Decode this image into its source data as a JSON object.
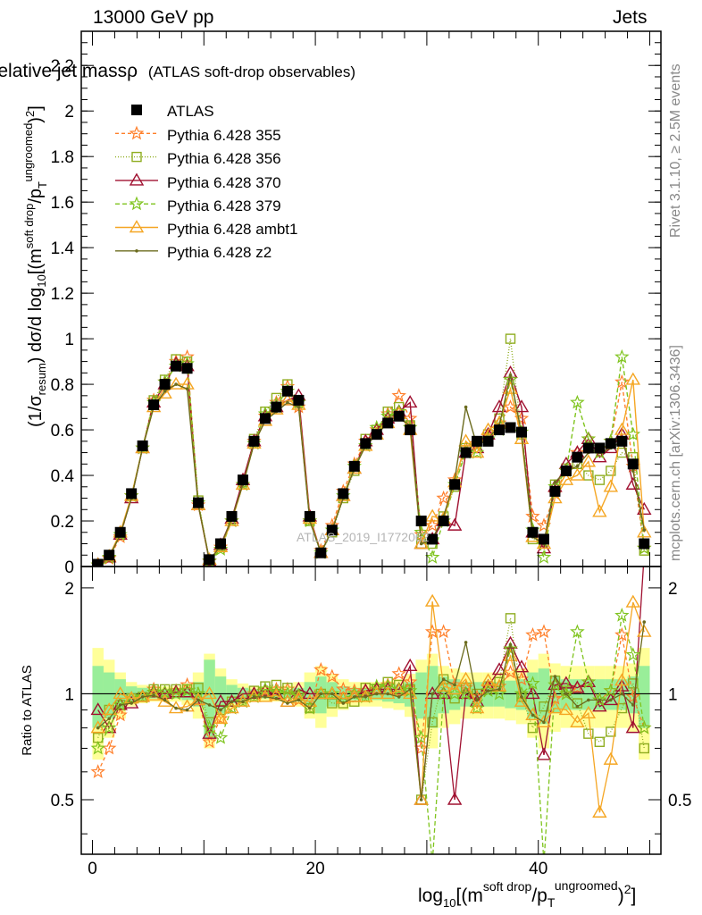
{
  "header": {
    "left": "13000 GeV pp",
    "right": "Jets",
    "side_top": "Rivet 3.1.10, ≥ 2.5M events",
    "side_bottom": "mcplots.cern.ch [arXiv:1306.3436]",
    "watermark": "ATLAS_2019_I1772062"
  },
  "chart_data": [
    {
      "type": "line",
      "title": "Relative jet massρ",
      "subtitle": "(ATLAS soft-drop observables)",
      "ylabel": "(1/σresum) dσ/d log10[(m^soft drop/pT^ungroomed)^2]",
      "ylim": [
        0,
        2.35
      ],
      "xlim": [
        -1,
        51
      ],
      "yticks": [
        "0",
        "0.2",
        "0.4",
        "0.6",
        "0.8",
        "1",
        "1.2",
        "1.4",
        "1.6",
        "1.8",
        "2",
        "2.2"
      ],
      "legend_position": "top-left",
      "legend": [
        "ATLAS",
        "Pythia 6.428 355",
        "Pythia 6.428 356",
        "Pythia 6.428 370",
        "Pythia 6.428 379",
        "Pythia 6.428 ambt1",
        "Pythia 6.428 z2"
      ],
      "x": [
        0.5,
        1.5,
        2.5,
        3.5,
        4.5,
        5.5,
        6.5,
        7.5,
        8.5,
        9.5,
        10.5,
        11.5,
        12.5,
        13.5,
        14.5,
        15.5,
        16.5,
        17.5,
        18.5,
        19.5,
        20.5,
        21.5,
        22.5,
        23.5,
        24.5,
        25.5,
        26.5,
        27.5,
        28.5,
        29.5,
        30.5,
        31.5,
        32.5,
        33.5,
        34.5,
        35.5,
        36.5,
        37.5,
        38.5,
        39.5,
        40.5,
        41.5,
        42.5,
        43.5,
        44.5,
        45.5,
        46.5,
        47.5,
        48.5,
        49.5
      ],
      "series": [
        {
          "name": "ATLAS",
          "color": "#000000",
          "marker": "square",
          "values": [
            0.01,
            0.05,
            0.15,
            0.32,
            0.53,
            0.71,
            0.8,
            0.88,
            0.87,
            0.28,
            0.03,
            0.1,
            0.22,
            0.38,
            0.55,
            0.65,
            0.7,
            0.77,
            0.73,
            0.22,
            0.06,
            0.16,
            0.32,
            0.44,
            0.54,
            0.58,
            0.63,
            0.66,
            0.6,
            0.2,
            0.12,
            0.2,
            0.36,
            0.5,
            0.55,
            0.55,
            0.6,
            0.61,
            0.59,
            0.15,
            0.12,
            0.33,
            0.42,
            0.48,
            0.52,
            0.52,
            0.54,
            0.55,
            0.45,
            0.1
          ]
        },
        {
          "name": "Pythia 6.428 355",
          "color": "#ff7f2a",
          "marker": "star",
          "dash": "4,3",
          "values": [
            0.006,
            0.035,
            0.13,
            0.31,
            0.52,
            0.73,
            0.81,
            0.9,
            0.92,
            0.27,
            0.022,
            0.085,
            0.2,
            0.36,
            0.55,
            0.66,
            0.72,
            0.79,
            0.7,
            0.2,
            0.07,
            0.18,
            0.33,
            0.45,
            0.55,
            0.6,
            0.67,
            0.75,
            0.65,
            0.14,
            0.18,
            0.3,
            0.38,
            0.52,
            0.54,
            0.57,
            0.63,
            0.7,
            0.65,
            0.22,
            0.18,
            0.32,
            0.42,
            0.5,
            0.56,
            0.5,
            0.55,
            0.81,
            0.44,
            0.08
          ]
        },
        {
          "name": "Pythia 6.428 356",
          "color": "#8fad20",
          "marker": "open-square",
          "dash": "1,2",
          "values": [
            0.008,
            0.045,
            0.14,
            0.31,
            0.52,
            0.73,
            0.82,
            0.91,
            0.9,
            0.29,
            0.025,
            0.09,
            0.21,
            0.37,
            0.56,
            0.68,
            0.74,
            0.8,
            0.72,
            0.2,
            0.06,
            0.15,
            0.3,
            0.42,
            0.56,
            0.6,
            0.68,
            0.7,
            0.62,
            0.1,
            0.1,
            0.22,
            0.35,
            0.52,
            0.55,
            0.58,
            0.65,
            1.0,
            0.58,
            0.12,
            0.11,
            0.36,
            0.43,
            0.45,
            0.4,
            0.38,
            0.42,
            0.5,
            0.48,
            0.07
          ]
        },
        {
          "name": "Pythia 6.428 370",
          "color": "#a01030",
          "marker": "open-triangle",
          "values": [
            0.009,
            0.04,
            0.14,
            0.3,
            0.52,
            0.72,
            0.8,
            0.89,
            0.88,
            0.27,
            0.023,
            0.095,
            0.21,
            0.38,
            0.55,
            0.66,
            0.7,
            0.73,
            0.75,
            0.22,
            0.06,
            0.16,
            0.31,
            0.43,
            0.55,
            0.6,
            0.65,
            0.68,
            0.72,
            0.1,
            0.12,
            0.2,
            0.18,
            0.5,
            0.52,
            0.58,
            0.7,
            0.85,
            0.7,
            0.15,
            0.08,
            0.35,
            0.45,
            0.5,
            0.56,
            0.48,
            0.52,
            0.58,
            0.36,
            0.25
          ]
        },
        {
          "name": "Pythia 6.428 379",
          "color": "#7fc41e",
          "marker": "star",
          "dash": "5,3",
          "values": [
            0.007,
            0.04,
            0.14,
            0.31,
            0.52,
            0.72,
            0.81,
            0.88,
            0.89,
            0.28,
            0.024,
            0.075,
            0.2,
            0.36,
            0.54,
            0.67,
            0.71,
            0.77,
            0.72,
            0.2,
            0.06,
            0.16,
            0.31,
            0.44,
            0.53,
            0.61,
            0.66,
            0.68,
            0.61,
            0.15,
            0.04,
            0.2,
            0.36,
            0.5,
            0.5,
            0.56,
            0.6,
            0.82,
            0.59,
            0.16,
            0.04,
            0.35,
            0.42,
            0.72,
            0.56,
            0.5,
            0.55,
            0.92,
            0.58,
            0.08
          ]
        },
        {
          "name": "Pythia 6.428 ambt1",
          "color": "#f5a623",
          "marker": "open-triangle",
          "values": [
            0.008,
            0.045,
            0.15,
            0.31,
            0.52,
            0.7,
            0.76,
            0.8,
            0.8,
            0.27,
            0.03,
            0.085,
            0.2,
            0.36,
            0.54,
            0.64,
            0.69,
            0.73,
            0.71,
            0.21,
            0.06,
            0.16,
            0.31,
            0.43,
            0.53,
            0.58,
            0.63,
            0.67,
            0.6,
            0.1,
            0.22,
            0.21,
            0.37,
            0.55,
            0.5,
            0.6,
            0.63,
            0.78,
            0.56,
            0.13,
            0.1,
            0.3,
            0.38,
            0.4,
            0.46,
            0.24,
            0.35,
            0.6,
            0.82,
            0.15
          ]
        },
        {
          "name": "Pythia 6.428 z2",
          "color": "#6b6b1e",
          "marker": "dot",
          "values": [
            0.008,
            0.042,
            0.14,
            0.3,
            0.52,
            0.7,
            0.77,
            0.8,
            0.78,
            0.27,
            0.028,
            0.09,
            0.21,
            0.36,
            0.54,
            0.64,
            0.68,
            0.72,
            0.7,
            0.2,
            0.06,
            0.16,
            0.3,
            0.43,
            0.53,
            0.58,
            0.63,
            0.65,
            0.62,
            0.1,
            0.12,
            0.22,
            0.38,
            0.7,
            0.53,
            0.56,
            0.62,
            0.84,
            0.58,
            0.13,
            0.1,
            0.37,
            0.42,
            0.44,
            0.5,
            0.5,
            0.52,
            0.55,
            0.42,
            0.16
          ]
        }
      ]
    },
    {
      "type": "line",
      "ylabel": "Ratio to ATLAS",
      "xlabel": "log10[(m^soft drop/pT^ungroomed)^2]",
      "ylim": [
        0.35,
        2.3
      ],
      "yticks": [
        "0.5",
        "1",
        "2"
      ],
      "xticks": [
        "0",
        "20",
        "40"
      ],
      "reference": 1.0,
      "band_stat_halfwidth": [
        0.2,
        0.15,
        0.1,
        0.05,
        0.04,
        0.03,
        0.03,
        0.03,
        0.04,
        0.08,
        0.25,
        0.12,
        0.06,
        0.04,
        0.03,
        0.03,
        0.03,
        0.03,
        0.04,
        0.08,
        0.12,
        0.08,
        0.05,
        0.04,
        0.04,
        0.04,
        0.05,
        0.06,
        0.08,
        0.15,
        0.2,
        0.12,
        0.1,
        0.08,
        0.08,
        0.08,
        0.08,
        0.09,
        0.1,
        0.15,
        0.18,
        0.12,
        0.1,
        0.1,
        0.1,
        0.1,
        0.1,
        0.1,
        0.12,
        0.2
      ],
      "band_total_halfwidth": [
        0.35,
        0.25,
        0.15,
        0.08,
        0.06,
        0.05,
        0.05,
        0.05,
        0.07,
        0.15,
        0.3,
        0.18,
        0.1,
        0.07,
        0.05,
        0.05,
        0.05,
        0.06,
        0.08,
        0.15,
        0.2,
        0.14,
        0.1,
        0.08,
        0.08,
        0.08,
        0.09,
        0.1,
        0.14,
        0.25,
        0.3,
        0.2,
        0.18,
        0.15,
        0.15,
        0.15,
        0.15,
        0.16,
        0.18,
        0.25,
        0.3,
        0.22,
        0.2,
        0.2,
        0.2,
        0.2,
        0.2,
        0.2,
        0.22,
        0.35
      ],
      "series": [
        {
          "name": "Pythia 6.428 355",
          "values": [
            0.6,
            0.7,
            0.87,
            0.97,
            0.98,
            1.03,
            1.01,
            1.02,
            1.06,
            0.96,
            0.73,
            0.85,
            0.91,
            0.95,
            1.0,
            1.02,
            1.03,
            1.03,
            0.96,
            0.91,
            1.17,
            1.12,
            1.03,
            1.02,
            1.02,
            1.03,
            1.06,
            1.14,
            1.08,
            0.7,
            1.5,
            1.5,
            1.06,
            1.04,
            0.98,
            1.04,
            1.05,
            1.15,
            1.1,
            1.47,
            1.5,
            0.97,
            1.0,
            1.04,
            1.08,
            0.96,
            1.02,
            1.47,
            0.98,
            0.8
          ]
        },
        {
          "name": "Pythia 6.428 356",
          "values": [
            0.75,
            0.9,
            0.93,
            0.97,
            0.98,
            1.03,
            1.03,
            1.03,
            1.03,
            1.04,
            0.83,
            0.9,
            0.95,
            0.97,
            1.02,
            1.05,
            1.06,
            1.04,
            0.99,
            0.91,
            1.0,
            0.94,
            0.94,
            0.95,
            1.04,
            1.03,
            1.08,
            1.06,
            1.03,
            0.5,
            0.83,
            1.1,
            0.97,
            1.04,
            1.0,
            1.05,
            1.08,
            1.64,
            0.98,
            0.8,
            0.92,
            1.09,
            1.02,
            0.94,
            0.77,
            0.73,
            0.78,
            0.91,
            1.07,
            0.7
          ]
        },
        {
          "name": "Pythia 6.428 370",
          "values": [
            0.9,
            0.8,
            0.93,
            0.94,
            0.98,
            1.01,
            1.0,
            1.01,
            1.01,
            0.96,
            0.77,
            0.95,
            0.95,
            1.0,
            1.0,
            1.02,
            1.0,
            0.95,
            1.03,
            1.0,
            1.0,
            1.0,
            0.97,
            0.98,
            1.02,
            1.03,
            1.03,
            1.03,
            1.2,
            0.5,
            1.0,
            1.0,
            0.5,
            1.0,
            0.95,
            1.05,
            1.17,
            1.39,
            1.19,
            1.0,
            0.67,
            1.06,
            1.07,
            1.04,
            1.08,
            0.92,
            0.96,
            1.05,
            0.8,
            2.5
          ]
        },
        {
          "name": "Pythia 6.428 379",
          "values": [
            0.7,
            0.8,
            0.93,
            0.97,
            0.98,
            1.01,
            1.01,
            1.0,
            1.02,
            1.0,
            0.8,
            0.75,
            0.91,
            0.95,
            0.98,
            1.03,
            1.01,
            1.0,
            0.99,
            0.91,
            1.0,
            1.0,
            0.97,
            1.0,
            0.98,
            1.05,
            1.05,
            1.03,
            1.02,
            0.75,
            0.33,
            1.0,
            1.0,
            1.0,
            0.91,
            1.02,
            1.0,
            1.34,
            1.0,
            1.07,
            0.33,
            1.06,
            1.0,
            1.5,
            1.08,
            0.96,
            1.02,
            1.67,
            1.29,
            0.8
          ]
        },
        {
          "name": "Pythia 6.428 ambt1",
          "values": [
            0.8,
            0.9,
            1.0,
            0.97,
            0.98,
            0.99,
            0.95,
            0.91,
            0.92,
            0.96,
            1.0,
            0.85,
            0.91,
            0.95,
            0.98,
            0.98,
            0.99,
            0.95,
            0.97,
            0.95,
            1.0,
            1.0,
            0.97,
            0.98,
            0.98,
            1.0,
            1.0,
            1.02,
            1.0,
            0.5,
            1.83,
            1.05,
            1.03,
            1.1,
            0.91,
            1.09,
            1.05,
            1.28,
            0.95,
            0.87,
            0.83,
            0.91,
            0.9,
            0.83,
            0.88,
            0.46,
            0.65,
            1.09,
            1.82,
            1.5
          ]
        },
        {
          "name": "Pythia 6.428 z2",
          "values": [
            0.8,
            0.85,
            0.93,
            0.94,
            0.98,
            0.99,
            0.96,
            0.91,
            0.9,
            0.96,
            0.93,
            0.9,
            0.95,
            0.95,
            0.98,
            0.98,
            0.97,
            0.94,
            0.96,
            0.91,
            1.0,
            1.0,
            0.94,
            0.98,
            0.98,
            1.0,
            1.0,
            0.98,
            1.03,
            0.5,
            1.0,
            1.1,
            1.06,
            1.4,
            0.96,
            1.02,
            1.03,
            1.38,
            0.98,
            0.87,
            0.83,
            1.12,
            1.0,
            0.92,
            0.96,
            0.96,
            0.96,
            1.0,
            0.93,
            1.6
          ]
        }
      ]
    }
  ]
}
